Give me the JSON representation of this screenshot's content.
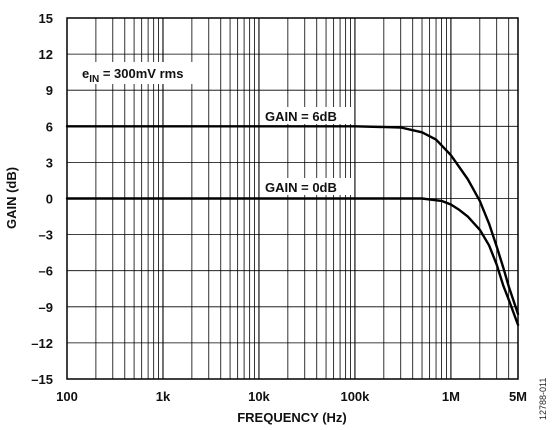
{
  "chart_data": {
    "type": "line",
    "x_scale": "log",
    "xlim": [
      100,
      5000000
    ],
    "ylim": [
      -15,
      15
    ],
    "grid": true,
    "xlabel": "FREQUENCY (Hz)",
    "ylabel": "GAIN (dB)",
    "x_ticks": [
      {
        "value": 100,
        "label": "100"
      },
      {
        "value": 1000,
        "label": "1k"
      },
      {
        "value": 10000,
        "label": "10k"
      },
      {
        "value": 100000,
        "label": "100k"
      },
      {
        "value": 1000000,
        "label": "1M"
      },
      {
        "value": 5000000,
        "label": "5M"
      }
    ],
    "y_ticks": [
      {
        "value": 15,
        "label": "15"
      },
      {
        "value": 12,
        "label": "12"
      },
      {
        "value": 9,
        "label": "9"
      },
      {
        "value": 6,
        "label": "6"
      },
      {
        "value": 3,
        "label": "3"
      },
      {
        "value": 0,
        "label": "0"
      },
      {
        "value": -3,
        "label": "–3"
      },
      {
        "value": -6,
        "label": "–6"
      },
      {
        "value": -9,
        "label": "–9"
      },
      {
        "value": -12,
        "label": "–12"
      },
      {
        "value": -15,
        "label": "–15"
      }
    ],
    "series": [
      {
        "name": "GAIN = 6dB",
        "x": [
          100,
          1000,
          10000,
          100000,
          300000,
          500000,
          700000,
          1000000,
          1500000,
          2000000,
          2500000,
          3000000,
          3500000,
          4000000,
          5000000
        ],
        "y": [
          6,
          6,
          6,
          6,
          5.9,
          5.5,
          4.9,
          3.6,
          1.6,
          -0.2,
          -2.1,
          -4.0,
          -5.7,
          -7.3,
          -9.6
        ]
      },
      {
        "name": "GAIN = 0dB",
        "x": [
          100,
          1000,
          10000,
          100000,
          500000,
          800000,
          1000000,
          1200000,
          1500000,
          2000000,
          2500000,
          3000000,
          3500000,
          4000000,
          5000000
        ],
        "y": [
          0,
          0,
          0,
          0,
          0,
          -0.2,
          -0.5,
          -0.9,
          -1.5,
          -2.6,
          -3.9,
          -5.5,
          -7.2,
          -8.4,
          -10.5
        ]
      }
    ],
    "annotations": [
      {
        "text_main": "e",
        "text_sub": "IN",
        "text_rest": " = 300mV rms"
      },
      {
        "text": "GAIN = 6dB"
      },
      {
        "text": "GAIN = 0dB"
      }
    ],
    "figure_id": "12788-011"
  }
}
